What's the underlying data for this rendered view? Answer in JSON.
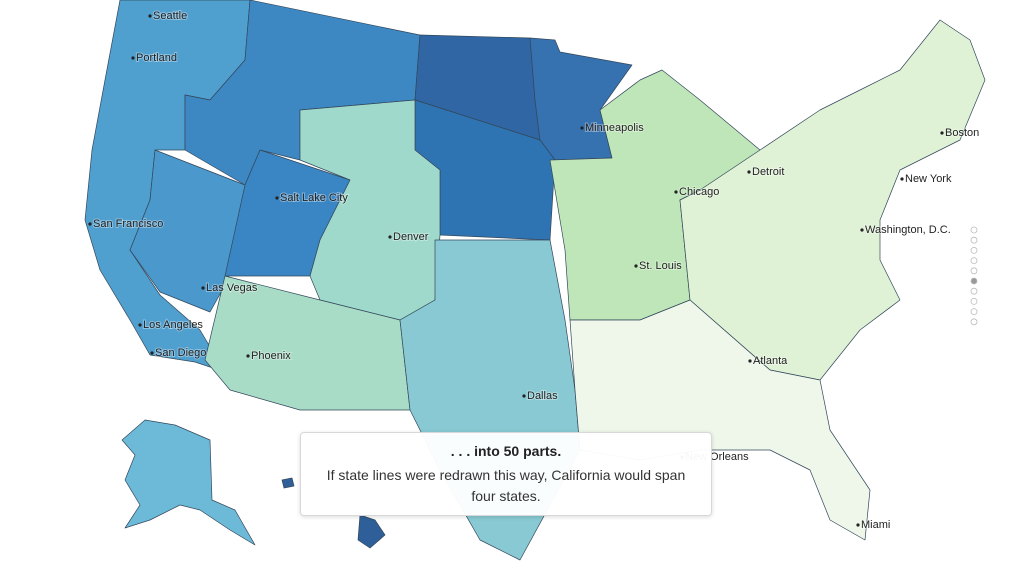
{
  "cities": [
    "Seattle",
    "Portland",
    "Minneapolis",
    "Boston",
    "Detroit",
    "Chicago",
    "New York",
    "Salt Lake City",
    "San Francisco",
    "Washington, D.C.",
    "Denver",
    "St. Louis",
    "Las Vegas",
    "Los Angeles",
    "San Diego",
    "Phoenix",
    "Atlanta",
    "Dallas",
    "New Orleans",
    "Miami"
  ],
  "caption": {
    "title": ". . . into 50 parts.",
    "text": "If state lines were redrawn this way, California would span four states."
  }
}
